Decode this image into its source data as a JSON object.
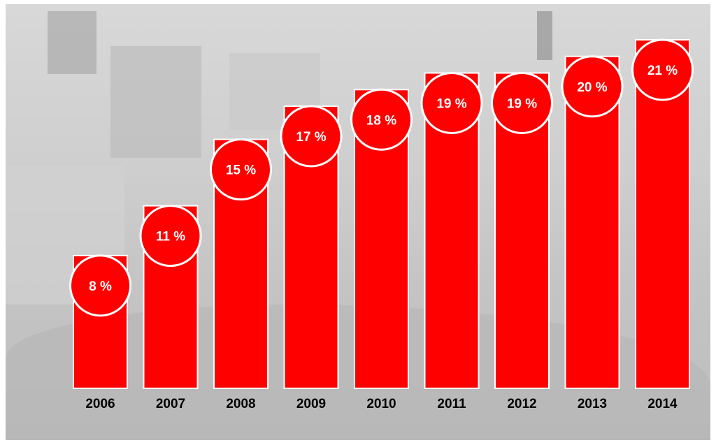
{
  "chart_data": {
    "type": "bar",
    "title": "",
    "xlabel": "",
    "ylabel": "",
    "categories": [
      "2006",
      "2007",
      "2008",
      "2009",
      "2010",
      "2011",
      "2012",
      "2013",
      "2014"
    ],
    "values": [
      8,
      11,
      15,
      17,
      18,
      19,
      19,
      20,
      21
    ],
    "value_labels": [
      "8 %",
      "11 %",
      "15 %",
      "17 %",
      "18 %",
      "19 %",
      "19 %",
      "20 %",
      "21 %"
    ],
    "ylim": [
      0,
      21
    ],
    "grid": false,
    "legend": "none",
    "colors": {
      "bar": "#ff0000",
      "bubble": "#ff0000",
      "bubble_outline": "#ffffff",
      "value_text": "#ffffff",
      "tick_text": "#000000"
    },
    "background": "grayscale photo of operating room"
  }
}
